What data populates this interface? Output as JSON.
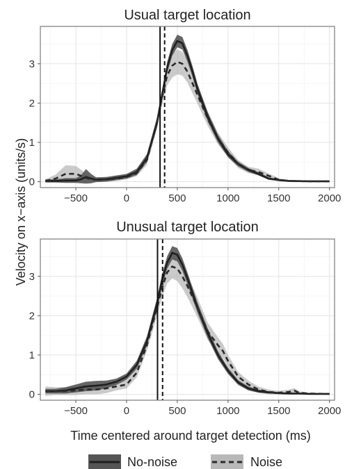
{
  "chart_data": [
    {
      "type": "line",
      "title": "Usual target location",
      "xlim": [
        -850,
        2050
      ],
      "ylim": [
        -0.15,
        3.95
      ],
      "xticks": [
        -500,
        0,
        500,
        1000,
        1500,
        2000
      ],
      "yticks": [
        0,
        1,
        2,
        3
      ],
      "grid": true,
      "vlines": [
        {
          "series": "No-noise",
          "x": 330,
          "style": "solid"
        },
        {
          "series": "Noise",
          "x": 375,
          "style": "dashed"
        }
      ],
      "series": [
        {
          "name": "No-noise",
          "line_color": "#1f1f1f",
          "band_color": "#555555",
          "x": [
            -800,
            -700,
            -600,
            -500,
            -450,
            -400,
            -350,
            -300,
            -200,
            -100,
            0,
            100,
            200,
            300,
            350,
            400,
            450,
            500,
            550,
            600,
            650,
            700,
            800,
            900,
            1000,
            1100,
            1200,
            1300,
            1400,
            1500,
            1600,
            1800,
            2000
          ],
          "y": [
            0.02,
            0.02,
            0.03,
            0.03,
            0.06,
            0.12,
            0.08,
            0.05,
            0.06,
            0.1,
            0.14,
            0.25,
            0.6,
            1.5,
            2.2,
            2.9,
            3.35,
            3.58,
            3.52,
            3.2,
            2.8,
            2.35,
            1.65,
            1.1,
            0.7,
            0.45,
            0.3,
            0.2,
            0.08,
            0.04,
            0.02,
            0.01,
            0.01
          ],
          "band": [
            0.04,
            0.04,
            0.06,
            0.06,
            0.1,
            0.2,
            0.12,
            0.06,
            0.06,
            0.06,
            0.06,
            0.08,
            0.1,
            0.12,
            0.12,
            0.14,
            0.15,
            0.16,
            0.16,
            0.15,
            0.14,
            0.13,
            0.12,
            0.1,
            0.08,
            0.06,
            0.05,
            0.04,
            0.03,
            0.02,
            0.02,
            0.01,
            0.01
          ]
        },
        {
          "name": "Noise",
          "line_color": "#2a2a2a",
          "band_color": "#b8b8b8",
          "x": [
            -800,
            -700,
            -600,
            -500,
            -450,
            -400,
            -350,
            -300,
            -200,
            -100,
            0,
            100,
            200,
            300,
            350,
            400,
            450,
            500,
            550,
            600,
            650,
            700,
            800,
            900,
            1000,
            1100,
            1200,
            1300,
            1400,
            1500,
            1600,
            1800,
            2000
          ],
          "y": [
            0.02,
            0.08,
            0.2,
            0.2,
            0.15,
            0.1,
            0.06,
            0.05,
            0.06,
            0.08,
            0.12,
            0.22,
            0.55,
            1.5,
            2.15,
            2.7,
            2.95,
            3.05,
            3.0,
            2.8,
            2.5,
            2.2,
            1.6,
            1.1,
            0.75,
            0.45,
            0.3,
            0.25,
            0.15,
            0.05,
            0.02,
            0.01,
            0.01
          ],
          "band": [
            0.04,
            0.1,
            0.22,
            0.2,
            0.16,
            0.1,
            0.06,
            0.06,
            0.06,
            0.06,
            0.06,
            0.08,
            0.12,
            0.15,
            0.2,
            0.25,
            0.3,
            0.32,
            0.3,
            0.28,
            0.25,
            0.22,
            0.18,
            0.15,
            0.12,
            0.1,
            0.08,
            0.08,
            0.06,
            0.04,
            0.02,
            0.01,
            0.01
          ]
        }
      ]
    },
    {
      "type": "line",
      "title": "Unusual target location",
      "xlim": [
        -850,
        2050
      ],
      "ylim": [
        -0.15,
        3.95
      ],
      "xticks": [
        -500,
        0,
        500,
        1000,
        1500,
        2000
      ],
      "yticks": [
        0,
        1,
        2,
        3
      ],
      "grid": true,
      "vlines": [
        {
          "series": "No-noise",
          "x": 305,
          "style": "solid"
        },
        {
          "series": "Noise",
          "x": 355,
          "style": "dashed"
        }
      ],
      "series": [
        {
          "name": "No-noise",
          "line_color": "#1f1f1f",
          "band_color": "#555555",
          "x": [
            -800,
            -700,
            -600,
            -500,
            -400,
            -300,
            -200,
            -100,
            0,
            100,
            200,
            300,
            350,
            400,
            450,
            500,
            550,
            600,
            700,
            800,
            900,
            1000,
            1100,
            1200,
            1300,
            1400,
            1500,
            1600,
            1700,
            1800,
            2000
          ],
          "y": [
            0.08,
            0.08,
            0.1,
            0.15,
            0.2,
            0.22,
            0.25,
            0.32,
            0.45,
            0.75,
            1.35,
            2.3,
            2.9,
            3.35,
            3.6,
            3.55,
            3.3,
            2.95,
            2.2,
            1.55,
            1.0,
            0.6,
            0.3,
            0.15,
            0.08,
            0.05,
            0.03,
            0.02,
            0.02,
            0.01,
            0.01
          ],
          "band": [
            0.06,
            0.06,
            0.08,
            0.1,
            0.12,
            0.12,
            0.1,
            0.08,
            0.08,
            0.1,
            0.12,
            0.14,
            0.15,
            0.16,
            0.17,
            0.17,
            0.16,
            0.15,
            0.13,
            0.12,
            0.1,
            0.08,
            0.06,
            0.05,
            0.04,
            0.03,
            0.02,
            0.02,
            0.02,
            0.01,
            0.01
          ]
        },
        {
          "name": "Noise",
          "line_color": "#2a2a2a",
          "band_color": "#b8b8b8",
          "x": [
            -800,
            -700,
            -600,
            -500,
            -400,
            -300,
            -200,
            -100,
            0,
            100,
            200,
            300,
            350,
            400,
            450,
            500,
            550,
            600,
            700,
            800,
            900,
            950,
            1000,
            1100,
            1200,
            1300,
            1400,
            1500,
            1600,
            1650,
            1700,
            1800,
            2000
          ],
          "y": [
            0.08,
            0.08,
            0.08,
            0.1,
            0.12,
            0.12,
            0.15,
            0.2,
            0.25,
            0.55,
            1.25,
            2.2,
            2.7,
            3.1,
            3.25,
            3.2,
            3.0,
            2.75,
            2.2,
            1.6,
            1.25,
            1.1,
            0.85,
            0.45,
            0.25,
            0.12,
            0.06,
            0.04,
            0.06,
            0.1,
            0.04,
            0.02,
            0.01
          ],
          "band": [
            0.12,
            0.1,
            0.1,
            0.12,
            0.12,
            0.12,
            0.12,
            0.1,
            0.1,
            0.12,
            0.15,
            0.2,
            0.25,
            0.28,
            0.3,
            0.32,
            0.3,
            0.28,
            0.25,
            0.22,
            0.2,
            0.18,
            0.15,
            0.12,
            0.1,
            0.08,
            0.06,
            0.05,
            0.06,
            0.06,
            0.04,
            0.02,
            0.01
          ]
        }
      ]
    }
  ],
  "axes": {
    "xlabel": "Time centered around target detection (ms)",
    "ylabel": "Velocity on x−axis (units/s)"
  },
  "legend": {
    "placement": "bottom",
    "items": [
      "No-noise",
      "Noise"
    ]
  }
}
